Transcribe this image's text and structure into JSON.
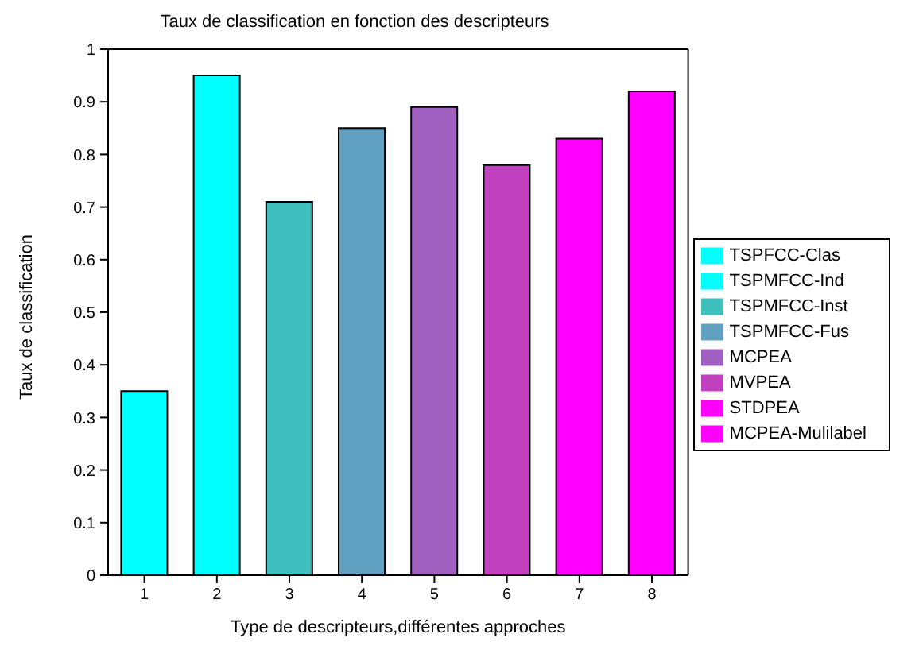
{
  "chart_data": {
    "type": "bar",
    "title": "Taux de classification en fonction des descripteurs",
    "xlabel": "Type de descripteurs,différentes approches",
    "ylabel": "Taux de classification",
    "categories": [
      "1",
      "2",
      "3",
      "4",
      "5",
      "6",
      "7",
      "8"
    ],
    "series": [
      {
        "name": "TSPFCC-Clas",
        "color": "#00ffff",
        "values": [
          0.35,
          null,
          null,
          null,
          null,
          null,
          null,
          null
        ]
      },
      {
        "name": "TSPMFCC-Ind",
        "color": "#00ffff",
        "values": [
          null,
          0.95,
          null,
          null,
          null,
          null,
          null,
          null
        ]
      },
      {
        "name": "TSPMFCC-Inst",
        "color": "#40bfbf",
        "values": [
          null,
          null,
          0.71,
          null,
          null,
          null,
          null,
          null
        ]
      },
      {
        "name": "TSPMFCC-Fus",
        "color": "#60a0c0",
        "values": [
          null,
          null,
          null,
          0.85,
          null,
          null,
          null,
          null
        ]
      },
      {
        "name": "MCPEA",
        "color": "#a060c0",
        "values": [
          null,
          null,
          null,
          null,
          0.89,
          null,
          null,
          null
        ]
      },
      {
        "name": "MVPEA",
        "color": "#c040c0",
        "values": [
          null,
          null,
          null,
          null,
          null,
          0.78,
          null,
          null
        ]
      },
      {
        "name": "STDPEA",
        "color": "#ff00ff",
        "values": [
          null,
          null,
          null,
          null,
          null,
          null,
          0.83,
          null
        ]
      },
      {
        "name": "MCPEA-Mulilabel",
        "color": "#ff00ff",
        "values": [
          null,
          null,
          null,
          null,
          null,
          null,
          null,
          0.92
        ]
      }
    ],
    "stacked": true,
    "ylim": [
      0,
      1
    ],
    "yticks": [
      0,
      0.1,
      0.2,
      0.3,
      0.4,
      0.5,
      0.6,
      0.7,
      0.8,
      0.9,
      1
    ],
    "grid": false,
    "legend": "right"
  }
}
